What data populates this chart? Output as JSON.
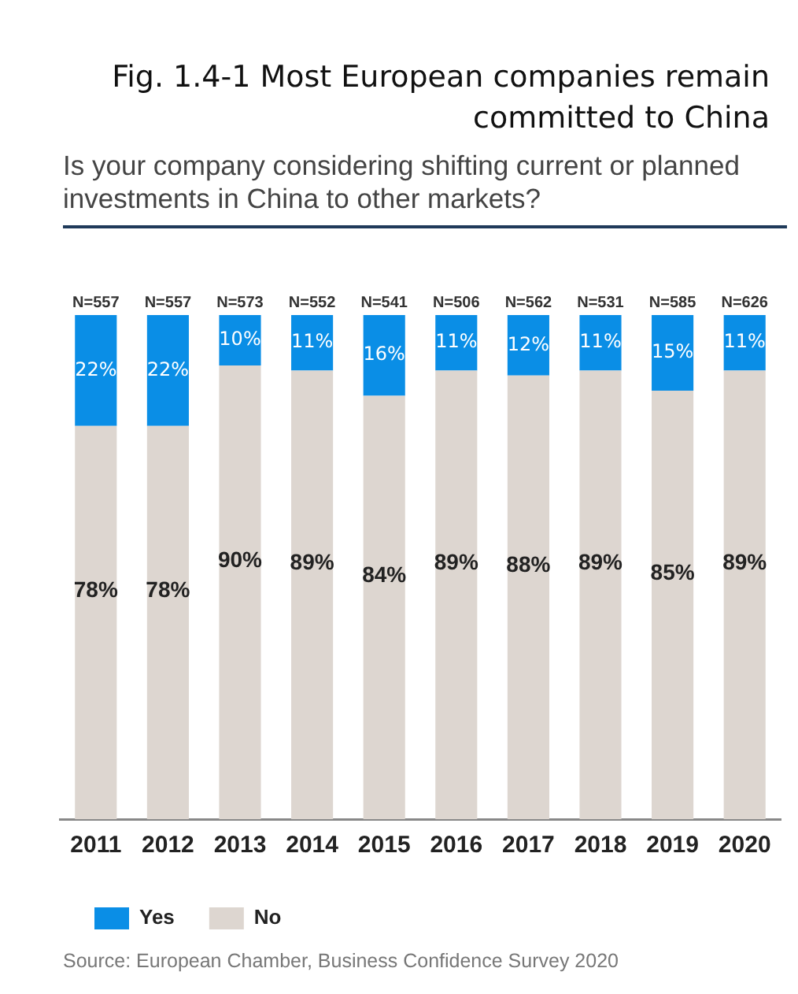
{
  "chart_data": {
    "type": "bar",
    "stacked": true,
    "title": "Fig. 1.4-1 Most European companies remain committed to China",
    "subtitle": "Is your company considering shifting current or planned investments in China to other markets?",
    "categories": [
      "2011",
      "2012",
      "2013",
      "2014",
      "2015",
      "2016",
      "2017",
      "2018",
      "2019",
      "2020"
    ],
    "series": [
      {
        "name": "No",
        "color": "#ddd6d0",
        "values": [
          78,
          78,
          90,
          89,
          84,
          89,
          88,
          89,
          85,
          89
        ],
        "value_labels": [
          "78%",
          "78%",
          "90%",
          "89%",
          "84%",
          "89%",
          "88%",
          "89%",
          "85%",
          "89%"
        ]
      },
      {
        "name": "Yes",
        "color": "#0a8ee6",
        "values": [
          22,
          22,
          10,
          11,
          16,
          11,
          12,
          11,
          15,
          11
        ],
        "value_labels": [
          "22%",
          "22%",
          "10%",
          "11%",
          "16%",
          "11%",
          "12%",
          "11%",
          "15%",
          "11%"
        ]
      }
    ],
    "ylim": [
      0,
      100
    ],
    "tick_labels": "x",
    "legend": "bottom left",
    "grid": false,
    "annotations": [
      {
        "text": "N=557",
        "x": "2011",
        "y": 100
      },
      {
        "text": "N=557",
        "x": "2012",
        "y": 100
      },
      {
        "text": "N=573",
        "x": "2013",
        "y": 100
      },
      {
        "text": "N=552",
        "x": "2014",
        "y": 100
      },
      {
        "text": "N=541",
        "x": "2015",
        "y": 100
      },
      {
        "text": "N=506",
        "x": "2016",
        "y": 100
      },
      {
        "text": "N=562",
        "x": "2017",
        "y": 100
      },
      {
        "text": "N=531",
        "x": "2018",
        "y": 100
      },
      {
        "text": "N=585",
        "x": "2019",
        "y": 100
      },
      {
        "text": "N=626",
        "x": "2020",
        "y": 100
      },
      "Source: European Chamber, Business Confidence Survey 2020"
    ]
  }
}
